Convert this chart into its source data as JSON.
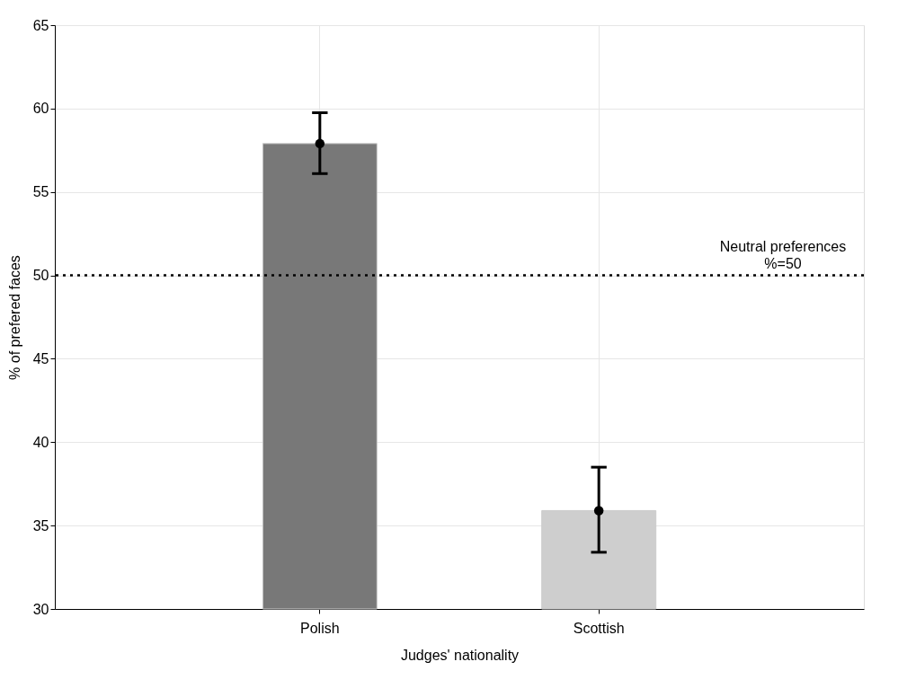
{
  "chart_data": {
    "type": "bar",
    "xlabel": "Judges' nationality",
    "ylabel": "% of prefered faces",
    "categories": [
      "Polish",
      "Scottish"
    ],
    "values": [
      57.9,
      35.9
    ],
    "colors": [
      "#787878",
      "#cecece"
    ],
    "errors": [
      [
        56.1,
        59.75
      ],
      [
        33.4,
        38.5
      ]
    ],
    "series": [
      {
        "type": "scatter",
        "x": [
          "Polish",
          "Scottish"
        ],
        "values": [
          57.9,
          35.9
        ],
        "color": "#000000",
        "marker": "circle"
      }
    ],
    "ylim": [
      30,
      65
    ],
    "yticks": [
      30,
      35,
      40,
      45,
      50,
      55,
      60,
      65
    ],
    "grid": true,
    "ref_lines": [
      {
        "axis": "y",
        "value": 50,
        "label": "Neutral preferences\n%=50",
        "color": "#000000",
        "line_style": "dotted"
      }
    ]
  }
}
